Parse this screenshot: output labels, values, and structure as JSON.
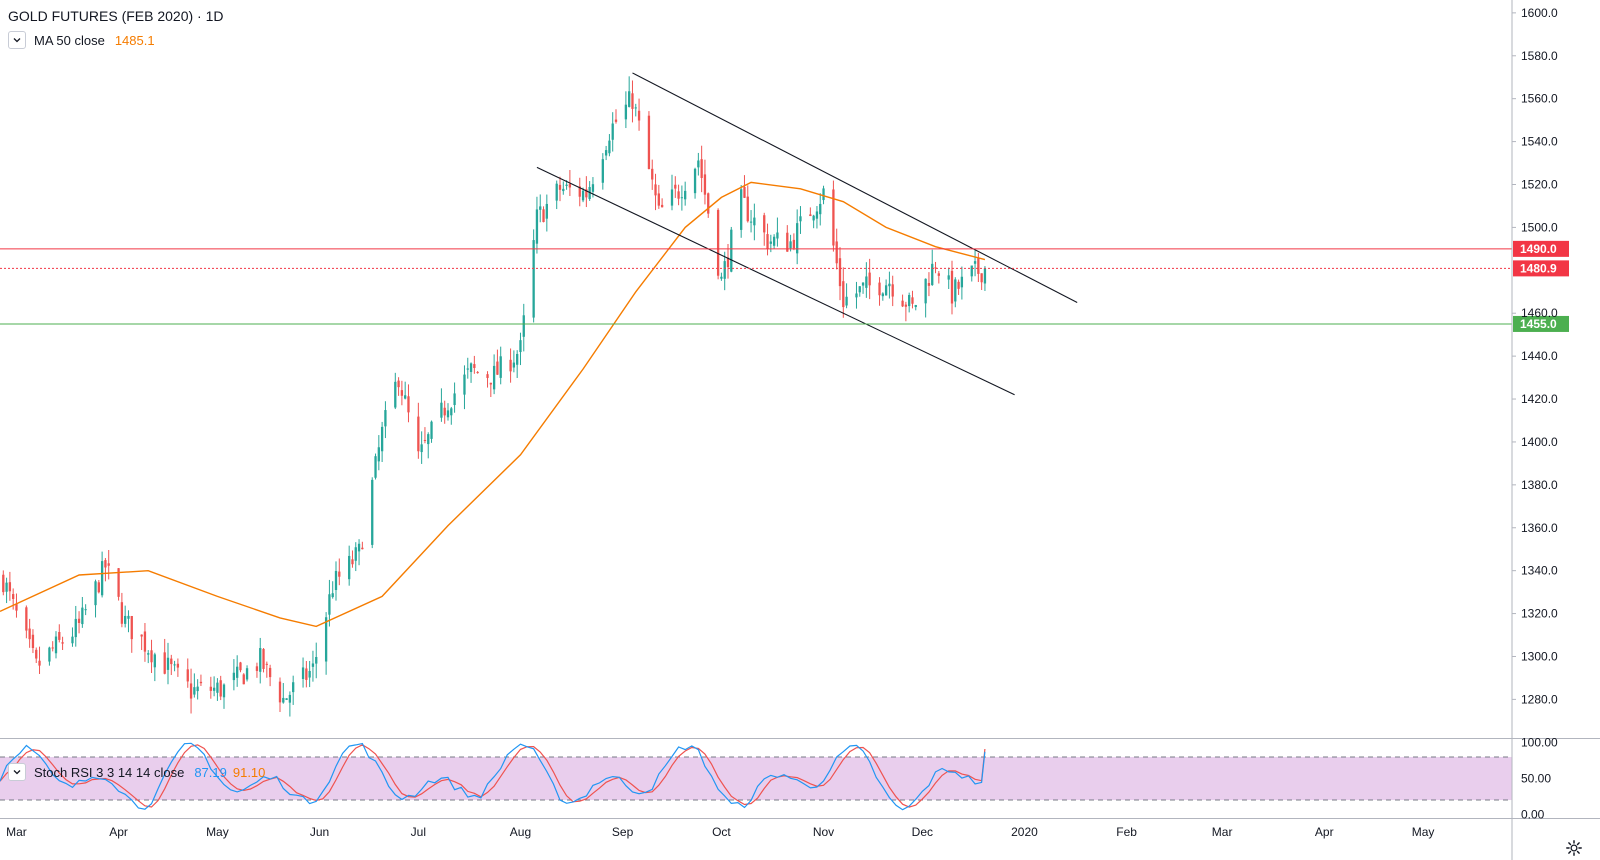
{
  "header": {
    "title": "GOLD FUTURES (FEB 2020) · 1D",
    "ma_label": "MA 50 close",
    "ma_value": "1485.1",
    "stoch_label": "Stoch RSI 3 3 14 14 close",
    "stoch_k": "87.19",
    "stoch_d": "91.10"
  },
  "colors": {
    "up": "#26a69a",
    "down": "#ef5350",
    "ma": "#f57c00",
    "stoch_k": "#2196f3",
    "stoch_d": "#ef5350",
    "stoch_band": "#e1bee7",
    "resistance": "#f23645",
    "support": "#4caf50",
    "trendline": "#131722"
  },
  "chart_data": [
    {
      "type": "candlestick",
      "title": "GOLD FUTURES (FEB 2020) · 1D",
      "x_labels": [
        "Mar",
        "Apr",
        "May",
        "Jun",
        "Jul",
        "Aug",
        "Sep",
        "Oct",
        "Nov",
        "Dec",
        "2020",
        "Feb",
        "Mar",
        "Apr",
        "May"
      ],
      "x_range": [
        "2019-02-24",
        "2020-05-28"
      ],
      "ylim": [
        1262,
        1606
      ],
      "y_ticks": [
        "1600.0",
        "1580.0",
        "1560.0",
        "1540.0",
        "1520.0",
        "1500.0",
        "1460.0",
        "1440.0",
        "1420.0",
        "1400.0",
        "1380.0",
        "1360.0",
        "1340.0",
        "1320.0",
        "1300.0",
        "1280.0"
      ],
      "price_anchors": [
        [
          "2019-02-25",
          1336
        ],
        [
          "2019-02-28",
          1323
        ],
        [
          "2019-03-07",
          1295
        ],
        [
          "2019-03-12",
          1303
        ],
        [
          "2019-03-20",
          1314
        ],
        [
          "2019-03-28",
          1342
        ],
        [
          "2019-04-03",
          1316
        ],
        [
          "2019-04-12",
          1301
        ],
        [
          "2019-04-23",
          1284
        ],
        [
          "2019-05-03",
          1285
        ],
        [
          "2019-05-14",
          1298
        ],
        [
          "2019-05-21",
          1280
        ],
        [
          "2019-05-30",
          1294
        ],
        [
          "2019-06-05",
          1333
        ],
        [
          "2019-06-13",
          1348
        ],
        [
          "2019-06-20",
          1404
        ],
        [
          "2019-06-25",
          1431
        ],
        [
          "2019-07-01",
          1392
        ],
        [
          "2019-07-10",
          1419
        ],
        [
          "2019-07-17",
          1433
        ],
        [
          "2019-07-24",
          1431
        ],
        [
          "2019-08-01",
          1443
        ],
        [
          "2019-08-06",
          1504
        ],
        [
          "2019-08-13",
          1518
        ],
        [
          "2019-08-21",
          1516
        ],
        [
          "2019-08-28",
          1545
        ],
        [
          "2019-09-04",
          1560
        ],
        [
          "2019-09-12",
          1506
        ],
        [
          "2019-09-18",
          1517
        ],
        [
          "2019-09-24",
          1532
        ],
        [
          "2019-10-01",
          1475
        ],
        [
          "2019-10-07",
          1512
        ],
        [
          "2019-10-15",
          1494
        ],
        [
          "2019-10-22",
          1493
        ],
        [
          "2019-10-28",
          1508
        ],
        [
          "2019-11-01",
          1516
        ],
        [
          "2019-11-07",
          1466
        ],
        [
          "2019-11-14",
          1472
        ],
        [
          "2019-11-21",
          1475
        ],
        [
          "2019-11-28",
          1462
        ],
        [
          "2019-12-05",
          1484
        ],
        [
          "2019-12-10",
          1469
        ],
        [
          "2019-12-16",
          1478
        ],
        [
          "2019-12-20",
          1481
        ]
      ],
      "ma_series": {
        "name": "MA 50 close",
        "points": [
          [
            "2019-02-24",
            1321
          ],
          [
            "2019-03-20",
            1338
          ],
          [
            "2019-04-10",
            1340
          ],
          [
            "2019-05-01",
            1328
          ],
          [
            "2019-05-20",
            1318
          ],
          [
            "2019-05-31",
            1314
          ],
          [
            "2019-06-20",
            1328
          ],
          [
            "2019-07-10",
            1361
          ],
          [
            "2019-08-01",
            1394
          ],
          [
            "2019-08-20",
            1434
          ],
          [
            "2019-09-05",
            1470
          ],
          [
            "2019-09-20",
            1500
          ],
          [
            "2019-10-01",
            1514
          ],
          [
            "2019-10-10",
            1521
          ],
          [
            "2019-10-25",
            1518
          ],
          [
            "2019-11-07",
            1512
          ],
          [
            "2019-11-20",
            1500
          ],
          [
            "2019-12-05",
            1491
          ],
          [
            "2019-12-20",
            1485
          ]
        ]
      },
      "horizontal_levels": [
        {
          "value": 1490.0,
          "label": "1490.0",
          "style": "solid",
          "color": "#f23645"
        },
        {
          "value": 1480.9,
          "label": "1480.9",
          "style": "dotted",
          "color": "#f23645"
        },
        {
          "value": 1455.0,
          "label": "1455.0",
          "style": "solid",
          "color": "#4caf50"
        }
      ],
      "trendlines": [
        {
          "from": [
            "2019-09-04",
            1572
          ],
          "to": [
            "2020-01-17",
            1465
          ]
        },
        {
          "from": [
            "2019-08-06",
            1528
          ],
          "to": [
            "2019-12-29",
            1422
          ]
        }
      ]
    },
    {
      "type": "line",
      "title": "Stoch RSI 3 3 14 14 close",
      "ylim": [
        -5,
        105
      ],
      "y_ticks": [
        "100.00",
        "50.00",
        "0.00"
      ],
      "band": [
        20,
        80
      ],
      "series": [
        {
          "name": "K",
          "last": 87.19
        },
        {
          "name": "D",
          "last": 91.1
        }
      ]
    }
  ]
}
